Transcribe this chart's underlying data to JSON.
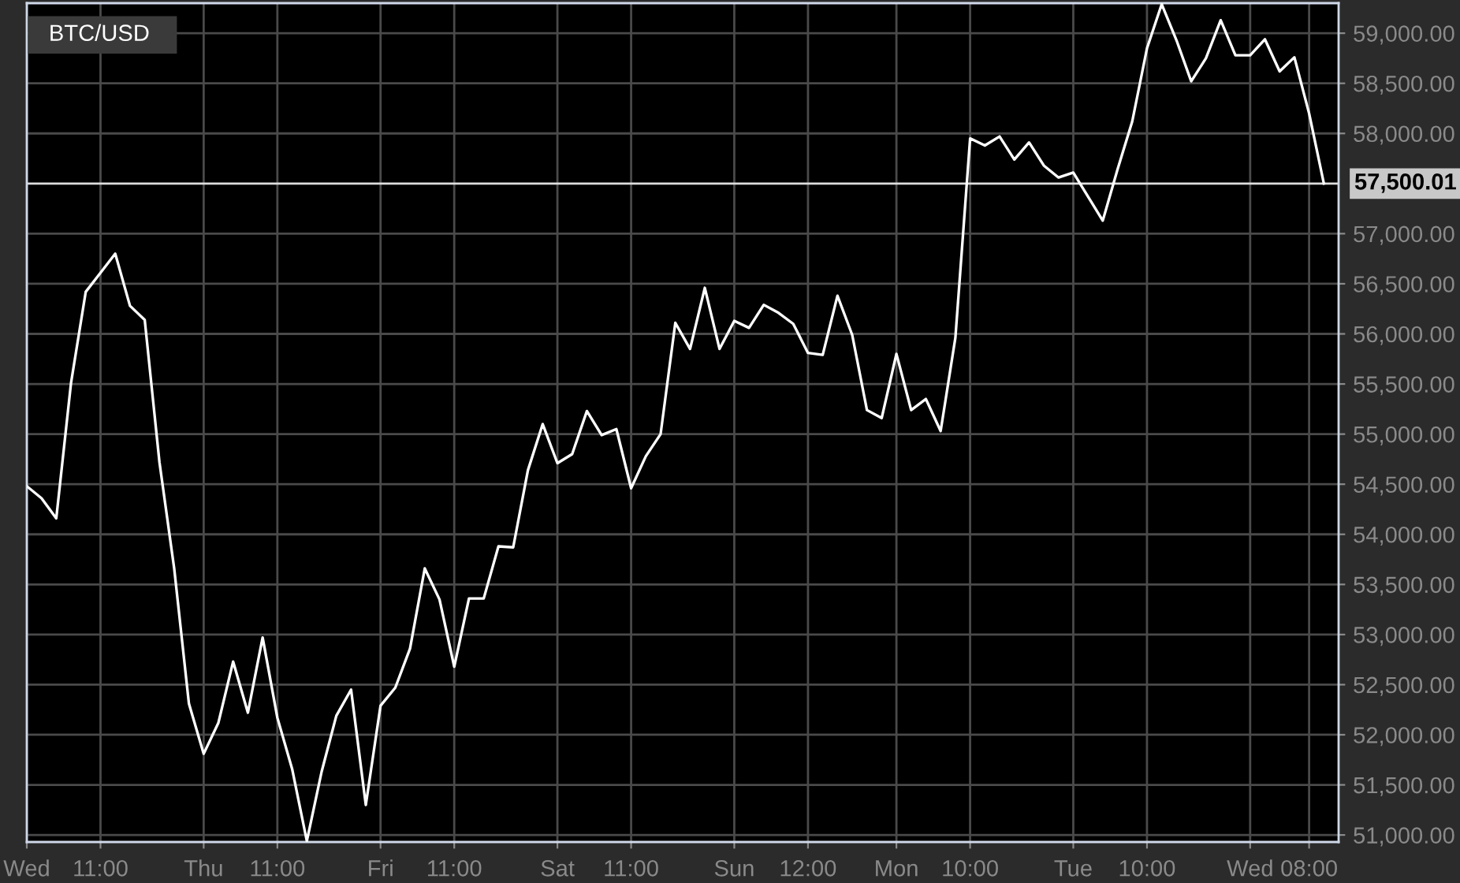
{
  "chart_data": {
    "type": "line",
    "title": "BTC/USD",
    "categories": [
      "Wed",
      null,
      null,
      null,
      null,
      "11:00",
      null,
      null,
      null,
      null,
      null,
      null,
      "Thu",
      null,
      null,
      null,
      null,
      "11:00",
      null,
      null,
      null,
      null,
      null,
      null,
      "Fri",
      null,
      null,
      null,
      null,
      "11:00",
      null,
      null,
      null,
      null,
      null,
      null,
      "Sat",
      null,
      null,
      null,
      null,
      "11:00",
      null,
      null,
      null,
      null,
      null,
      null,
      "Sun",
      null,
      null,
      null,
      null,
      "12:00",
      null,
      null,
      null,
      null,
      null,
      "Mon",
      null,
      null,
      null,
      null,
      "10:00",
      null,
      null,
      null,
      null,
      null,
      null,
      "Tue",
      null,
      null,
      null,
      null,
      "10:00",
      null,
      null,
      null,
      null,
      null,
      null,
      "Wed",
      null,
      null,
      null,
      "08:00",
      null
    ],
    "series": [
      {
        "color": "#ffffff",
        "values": [
          54480,
          54360,
          54160,
          55510,
          56420,
          56610,
          56800,
          56280,
          56140,
          54720,
          53660,
          52310,
          51810,
          52120,
          52730,
          52220,
          52970,
          52170,
          51660,
          50940,
          51630,
          52190,
          52450,
          51300,
          52290,
          52470,
          52860,
          53660,
          53350,
          52680,
          53360,
          53360,
          53880,
          53870,
          54640,
          55100,
          54710,
          54800,
          55230,
          54990,
          55050,
          54460,
          54780,
          55000,
          56110,
          55850,
          56460,
          55850,
          56130,
          56060,
          56290,
          56210,
          56100,
          55810,
          55790,
          56380,
          55990,
          55240,
          55160,
          55800,
          55240,
          55350,
          55030,
          55960,
          57950,
          57880,
          57970,
          57740,
          57910,
          57680,
          57560,
          57610,
          57370,
          57130,
          57640,
          58120,
          58850,
          59290,
          58930,
          58520,
          58750,
          59130,
          58780,
          58780,
          58940,
          58620,
          58760,
          58200,
          57500
        ]
      }
    ],
    "ylim": [
      50930,
      59300
    ],
    "yticks": [
      {
        "value": 51000,
        "label": "51,000.00"
      },
      {
        "value": 51500,
        "label": "51,500.00"
      },
      {
        "value": 52000,
        "label": "52,000.00"
      },
      {
        "value": 52500,
        "label": "52,500.00"
      },
      {
        "value": 53000,
        "label": "53,000.00"
      },
      {
        "value": 53500,
        "label": "53,500.00"
      },
      {
        "value": 54000,
        "label": "54,000.00"
      },
      {
        "value": 54500,
        "label": "54,500.00"
      },
      {
        "value": 55000,
        "label": "55,000.00"
      },
      {
        "value": 55500,
        "label": "55,500.00"
      },
      {
        "value": 56000,
        "label": "56,000.00"
      },
      {
        "value": 56500,
        "label": "56,500.00"
      },
      {
        "value": 57000,
        "label": "57,000.00"
      },
      {
        "value": 58000,
        "label": "58,000.00"
      },
      {
        "value": 58500,
        "label": "58,500.00"
      },
      {
        "value": 59000,
        "label": "59,000.00"
      }
    ],
    "ref_lines": [
      {
        "axis": "y",
        "value": 57500.01,
        "label": "57,500.01",
        "color": "#dddddd"
      }
    ],
    "grid": true,
    "marker": "none",
    "line_style": "solid"
  }
}
